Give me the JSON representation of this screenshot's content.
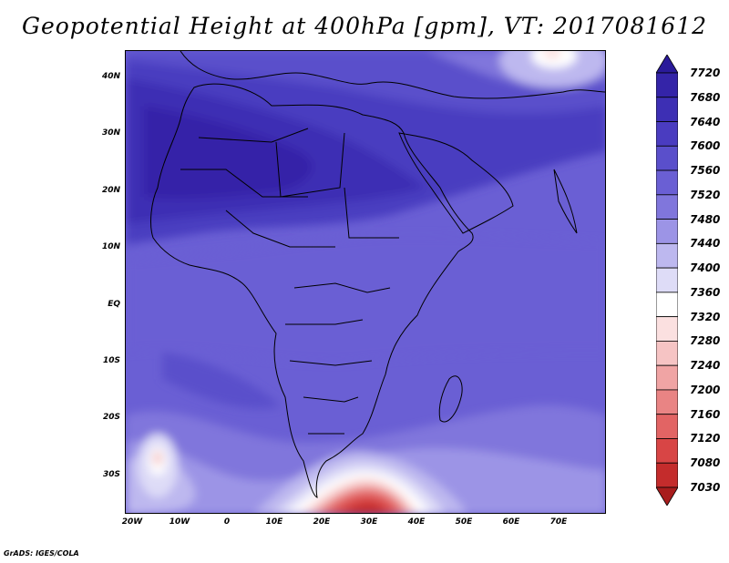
{
  "title": "Geopotential Height at 400hPa [gpm], VT: 2017081612",
  "footer": "GrADS: IGES/COLA",
  "lat_labels": [
    "40N",
    "30N",
    "20N",
    "10N",
    "EQ",
    "10S",
    "20S",
    "30S"
  ],
  "lon_labels": [
    "20W",
    "10W",
    "0",
    "10E",
    "20E",
    "30E",
    "40E",
    "50E",
    "60E",
    "70E"
  ],
  "colorbar": {
    "levels": [
      "7720",
      "7680",
      "7640",
      "7600",
      "7560",
      "7520",
      "7480",
      "7440",
      "7400",
      "7360",
      "7320",
      "7280",
      "7240",
      "7200",
      "7160",
      "7120",
      "7080",
      "7030"
    ],
    "colors": [
      "#2a1a9a",
      "#3424a8",
      "#3d2fb4",
      "#4a3cc0",
      "#5a4fcb",
      "#6a5fd4",
      "#8076dc",
      "#9c94e6",
      "#bdb8ef",
      "#dedcf7",
      "#ffffff",
      "#fbe0e0",
      "#f6c4c4",
      "#f0a4a4",
      "#e98484",
      "#e26464",
      "#d84545",
      "#c42c2c",
      "#a81d1d"
    ]
  },
  "map": {
    "variable": "Geopotential Height",
    "level": "400hPa",
    "units": "gpm",
    "valid_time": "2017081612"
  }
}
